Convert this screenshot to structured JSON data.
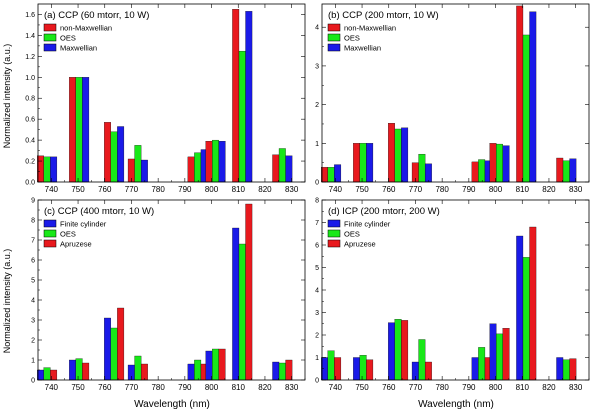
{
  "figure": {
    "ylabel": "Normalized intensity (a.u.)",
    "xlabel": "Wavelength (nm)"
  },
  "chart_data": [
    {
      "type": "bar",
      "title": "(a) CCP (60 mtorr, 10 W)",
      "xlim": [
        735,
        835
      ],
      "ylim": [
        0,
        1.7
      ],
      "xticks": [
        740,
        750,
        760,
        770,
        780,
        790,
        800,
        810,
        820,
        830
      ],
      "yticks": [
        0.0,
        0.2,
        0.4,
        0.6,
        0.8,
        1.0,
        1.2,
        1.4,
        1.6
      ],
      "ytick_labels": [
        "0.0",
        "0.2",
        "0.4",
        "0.6",
        "0.8",
        "1.0",
        "1.2",
        "1.4",
        "1.6"
      ],
      "legend_position": "top-left",
      "series": [
        {
          "name": "non-Maxwellian",
          "color": "#e8191e",
          "values": [
            0.25,
            1.0,
            0.57,
            0.22,
            0.24,
            0.39,
            1.65,
            0.26
          ]
        },
        {
          "name": "OES",
          "color": "#18e818",
          "values": [
            0.24,
            1.0,
            0.48,
            0.35,
            0.28,
            0.4,
            1.25,
            0.32
          ]
        },
        {
          "name": "Maxwellian",
          "color": "#1a1ae8",
          "values": [
            0.24,
            1.0,
            0.53,
            0.21,
            0.31,
            0.39,
            1.63,
            0.25
          ]
        }
      ],
      "x": [
        738.4,
        750.4,
        763.5,
        772.4,
        794.8,
        801.5,
        811.5,
        826.5
      ]
    },
    {
      "type": "bar",
      "title": "(b) CCP (200 mtorr, 10 W)",
      "xlim": [
        735,
        835
      ],
      "ylim": [
        0,
        4.6
      ],
      "xticks": [
        740,
        750,
        760,
        770,
        780,
        790,
        800,
        810,
        820,
        830
      ],
      "yticks": [
        0,
        1,
        2,
        3,
        4
      ],
      "ytick_labels": [
        "0",
        "1",
        "2",
        "3",
        "4"
      ],
      "legend_position": "top-left",
      "series": [
        {
          "name": "non-Maxwellian",
          "color": "#e8191e",
          "values": [
            0.38,
            1.0,
            1.52,
            0.5,
            0.52,
            1.0,
            4.55,
            0.62
          ]
        },
        {
          "name": "OES",
          "color": "#18e818",
          "values": [
            0.38,
            1.0,
            1.37,
            0.72,
            0.58,
            0.98,
            3.8,
            0.55
          ]
        },
        {
          "name": "Maxwellian",
          "color": "#1a1ae8",
          "values": [
            0.45,
            1.0,
            1.4,
            0.47,
            0.55,
            0.94,
            4.4,
            0.6
          ]
        }
      ],
      "x": [
        738.4,
        750.4,
        763.5,
        772.4,
        794.8,
        801.5,
        811.5,
        826.5
      ]
    },
    {
      "type": "bar",
      "title": "(c) CCP (400 mtorr, 10 W)",
      "xlim": [
        735,
        835
      ],
      "ylim": [
        0,
        9
      ],
      "xticks": [
        740,
        750,
        760,
        770,
        780,
        790,
        800,
        810,
        820,
        830
      ],
      "yticks": [
        0,
        1,
        2,
        3,
        4,
        5,
        6,
        7,
        8,
        9
      ],
      "ytick_labels": [
        "0",
        "1",
        "2",
        "3",
        "4",
        "5",
        "6",
        "7",
        "8",
        "9"
      ],
      "legend_position": "top-left",
      "series": [
        {
          "name": "Finite cylinder",
          "color": "#1a1ae8",
          "values": [
            0.5,
            1.0,
            3.1,
            0.75,
            0.8,
            1.45,
            7.6,
            0.9
          ]
        },
        {
          "name": "OES",
          "color": "#18e818",
          "values": [
            0.62,
            1.07,
            2.6,
            1.2,
            1.0,
            1.55,
            6.8,
            0.85
          ]
        },
        {
          "name": "Apruzese",
          "color": "#e8191e",
          "values": [
            0.5,
            0.85,
            3.6,
            0.8,
            0.8,
            1.55,
            8.8,
            1.0
          ]
        }
      ],
      "x": [
        738.4,
        750.4,
        763.5,
        772.4,
        794.8,
        801.5,
        811.5,
        826.5
      ]
    },
    {
      "type": "bar",
      "title": "(d) ICP (200 mtorr, 200 W)",
      "xlim": [
        735,
        835
      ],
      "ylim": [
        0,
        8
      ],
      "xticks": [
        740,
        750,
        760,
        770,
        780,
        790,
        800,
        810,
        820,
        830
      ],
      "yticks": [
        0,
        1,
        2,
        3,
        4,
        5,
        6,
        7,
        8
      ],
      "ytick_labels": [
        "0",
        "1",
        "2",
        "3",
        "4",
        "5",
        "6",
        "7",
        "8"
      ],
      "legend_position": "top-left",
      "series": [
        {
          "name": "Finite cylinder",
          "color": "#1a1ae8",
          "values": [
            1.0,
            1.0,
            2.55,
            0.8,
            1.0,
            2.5,
            6.4,
            1.0
          ]
        },
        {
          "name": "OES",
          "color": "#18e818",
          "values": [
            1.3,
            1.1,
            2.7,
            1.8,
            1.45,
            2.05,
            5.45,
            0.9
          ]
        },
        {
          "name": "Apruzese",
          "color": "#e8191e",
          "values": [
            1.0,
            0.9,
            2.65,
            0.8,
            1.0,
            2.3,
            6.8,
            0.95
          ]
        }
      ],
      "x": [
        738.4,
        750.4,
        763.5,
        772.4,
        794.8,
        801.5,
        811.5,
        826.5
      ]
    }
  ]
}
